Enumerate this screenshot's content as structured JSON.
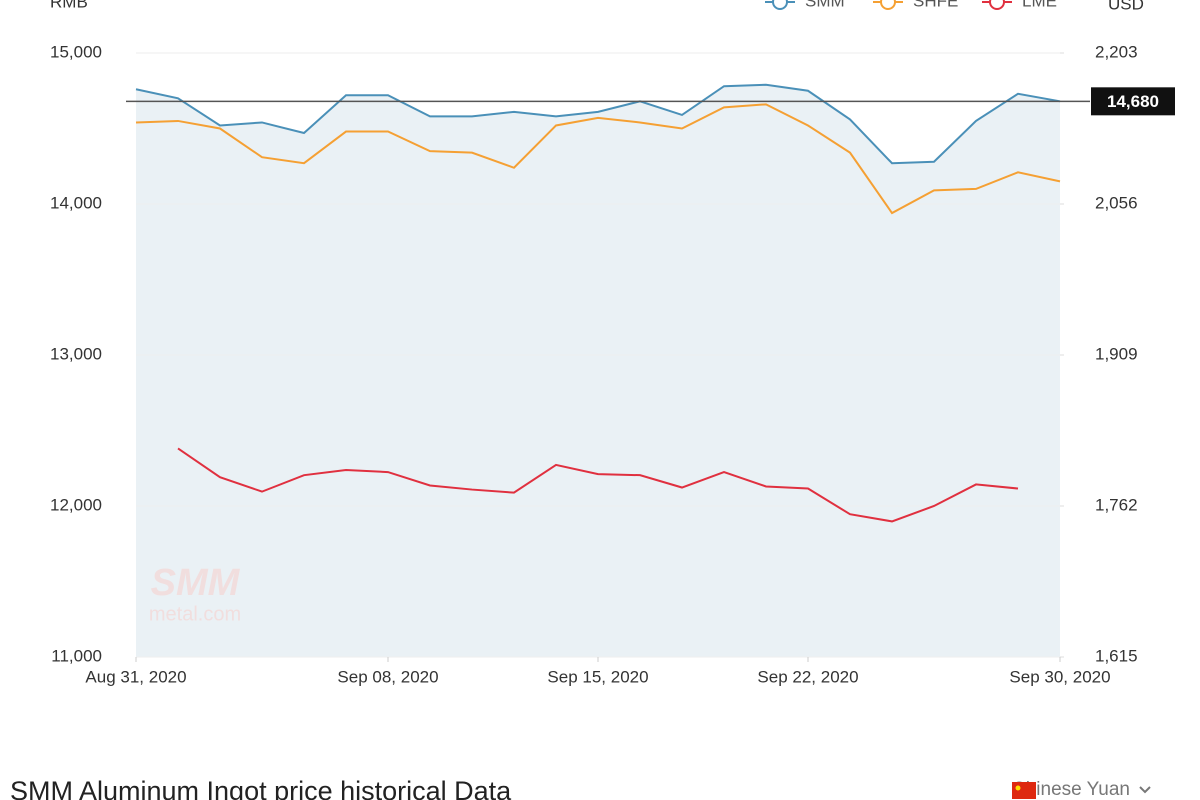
{
  "chart_data": {
    "type": "line",
    "y_label": "RMB",
    "y2_label": "USD",
    "categories": [
      "Aug 31, 2020",
      null,
      null,
      null,
      null,
      null,
      "Sep 08, 2020",
      null,
      null,
      null,
      null,
      "Sep 15, 2020",
      null,
      null,
      null,
      null,
      "Sep 22, 2020",
      null,
      null,
      null,
      null,
      null,
      "Sep 30, 2020"
    ],
    "series": [
      {
        "name": "SMM",
        "color": "#4a90b8",
        "area": true,
        "values": [
          14760,
          14700,
          14520,
          14540,
          14470,
          14720,
          14720,
          14580,
          14580,
          14610,
          14580,
          14610,
          14680,
          14590,
          14780,
          14790,
          14750,
          14560,
          14270,
          14280,
          14550,
          14730,
          14680
        ]
      },
      {
        "name": "SHFE",
        "color": "#f5a033",
        "values": [
          14540,
          14550,
          14500,
          14310,
          14270,
          14480,
          14480,
          14350,
          14340,
          14240,
          14520,
          14570,
          14540,
          14500,
          14640,
          14660,
          14520,
          14340,
          13940,
          14090,
          14100,
          14210,
          14150
        ]
      },
      {
        "name": "LME",
        "color": "#e0303f",
        "axis": "y2",
        "values": [
          null,
          1818,
          1790,
          1776,
          1792,
          1797,
          1795,
          1782,
          1778,
          1775,
          1802,
          1793,
          1792,
          1780,
          1795,
          1781,
          1779,
          1754,
          1747,
          1762,
          1783,
          1779,
          null
        ]
      }
    ],
    "ylim": [
      11000,
      15000
    ],
    "yticks": [
      {
        "value": 11000,
        "label": "11,000"
      },
      {
        "value": 12000,
        "label": "12,000"
      },
      {
        "value": 13000,
        "label": "13,000"
      },
      {
        "value": 14000,
        "label": "14,000"
      },
      {
        "value": 15000,
        "label": "15,000"
      }
    ],
    "y2lim": [
      1615,
      2203
    ],
    "y2ticks": [
      {
        "value": 1615,
        "label": "1,615"
      },
      {
        "value": 1762,
        "label": "1,762"
      },
      {
        "value": 1909,
        "label": "1,909"
      },
      {
        "value": 2056,
        "label": "2,056"
      },
      {
        "value": 2203,
        "label": "2,203"
      }
    ],
    "reference": {
      "value": 14680,
      "label": "14,680"
    },
    "watermark": [
      "SMM",
      "metal.com"
    ],
    "grid": true,
    "legend": "top-right"
  },
  "page": {
    "heading": "SMM Aluminum Ingot price historical Data",
    "currency": "Chinese Yuan"
  }
}
